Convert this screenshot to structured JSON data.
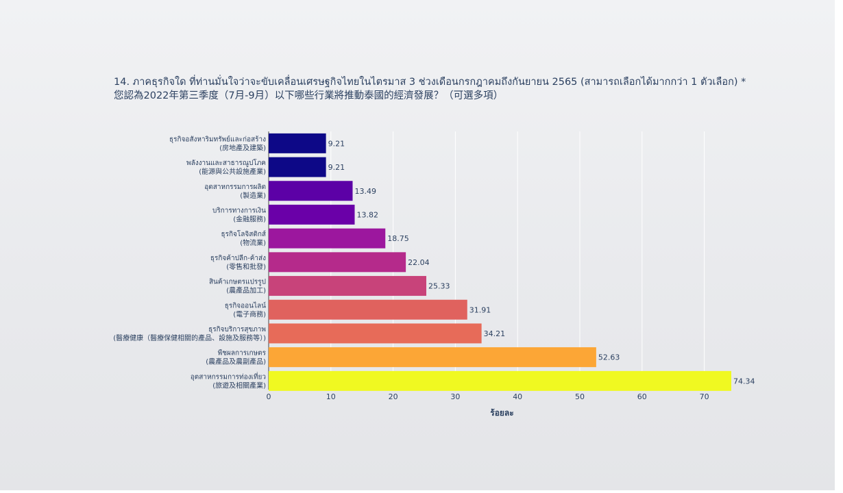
{
  "chart_data": {
    "type": "bar",
    "orientation": "horizontal",
    "title_line1": "14. ภาคธุรกิจใด ที่ท่านมั่นใจว่าจะขับเคลื่อนเศรษฐกิจไทยในไตรมาส 3 ช่วงเดือนกรกฎาคมถึงกันยายน 2565 (สามารถเลือกได้มากกว่า 1 ตัวเลือก) *",
    "title_line2": "您認為2022年第三季度（7月-9月）以下哪些行業將推動泰國的經濟發展？（可選多項）",
    "xlabel": "ร้อยละ",
    "xlim": [
      0,
      75
    ],
    "xticks": [
      0,
      10,
      20,
      30,
      40,
      50,
      60,
      70
    ],
    "grid": true,
    "categories": [
      {
        "label1": "ธุรกิจอสังหาริมทรัพย์และก่อสร้าง",
        "label2": "(房地產及建築)",
        "value": 9.21,
        "color": "#0d0887"
      },
      {
        "label1": "พลังงานและสาธารณูปโภค",
        "label2": "(能源與公共設施產業)",
        "value": 9.21,
        "color": "#0d0887"
      },
      {
        "label1": "อุตสาหกรรมการผลิต",
        "label2": "(製造業)",
        "value": 13.49,
        "color": "#5c01a6"
      },
      {
        "label1": "บริการทางการเงิน",
        "label2": "(金融服務)",
        "value": 13.82,
        "color": "#6a00a8"
      },
      {
        "label1": "ธุรกิจโลจิสติกส์",
        "label2": "(物流業)",
        "value": 18.75,
        "color": "#9c179e"
      },
      {
        "label1": "ธุรกิจค้าปลีก-ค้าส่ง",
        "label2": "(零售和批發)",
        "value": 22.04,
        "color": "#b52a8b"
      },
      {
        "label1": "สินค้าเกษตรแปรรูป",
        "label2": "(農產品加工)",
        "value": 25.33,
        "color": "#c8437a"
      },
      {
        "label1": "ธุรกิจออนไลน์",
        "label2": "(電子商務)",
        "value": 31.91,
        "color": "#e0625e"
      },
      {
        "label1": "ธุรกิจบริการสุขภาพ",
        "label2": "(醫療健康（醫療保健相關的產品、設施及服務等）)",
        "value": 34.21,
        "color": "#e76b59"
      },
      {
        "label1": "พืชผลการเกษตร",
        "label2": "(農產品及農副產品)",
        "value": 52.63,
        "color": "#fca636"
      },
      {
        "label1": "อุตสาหกรรมการท่องเที่ยว",
        "label2": "(旅遊及相關產業)",
        "value": 74.34,
        "color": "#f0f921"
      }
    ]
  }
}
